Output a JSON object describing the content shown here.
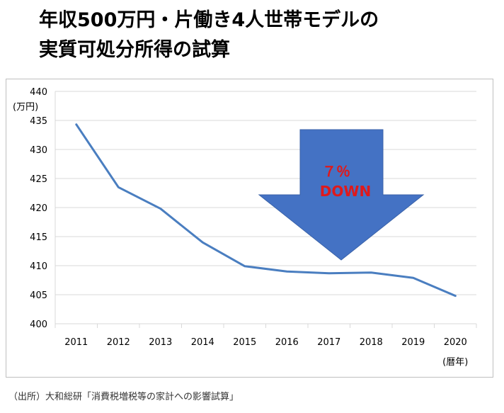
{
  "title_lines": [
    "年収500万円・片働き4人世帯モデルの",
    "実質可処分所得の試算"
  ],
  "source_text": "（出所）大和総研「消費税増税等の家計への影響試算」",
  "colors": {
    "line": "#4a7ec0",
    "grid": "#d9d9d9",
    "arrow_fill": "#4472c4",
    "arrow_text": "#e0191b",
    "axis_text": "#000000"
  },
  "arrow": {
    "label_line1": "７％",
    "label_line2": "DOWN",
    "direction": "down"
  },
  "chart_data": {
    "type": "line",
    "title": "",
    "ylabel": "(万円)",
    "xlabel": "(暦年)",
    "categories": [
      "2011",
      "2012",
      "2013",
      "2014",
      "2015",
      "2016",
      "2017",
      "2018",
      "2019",
      "2020"
    ],
    "series": [
      {
        "values": [
          434.3,
          423.5,
          419.8,
          414.0,
          409.9,
          409.0,
          408.7,
          408.8,
          407.9,
          404.8
        ]
      }
    ],
    "ylim": [
      400,
      440
    ],
    "yticks": [
      400,
      405,
      410,
      415,
      420,
      425,
      430,
      435,
      440
    ],
    "grid": true,
    "legend": "none"
  }
}
